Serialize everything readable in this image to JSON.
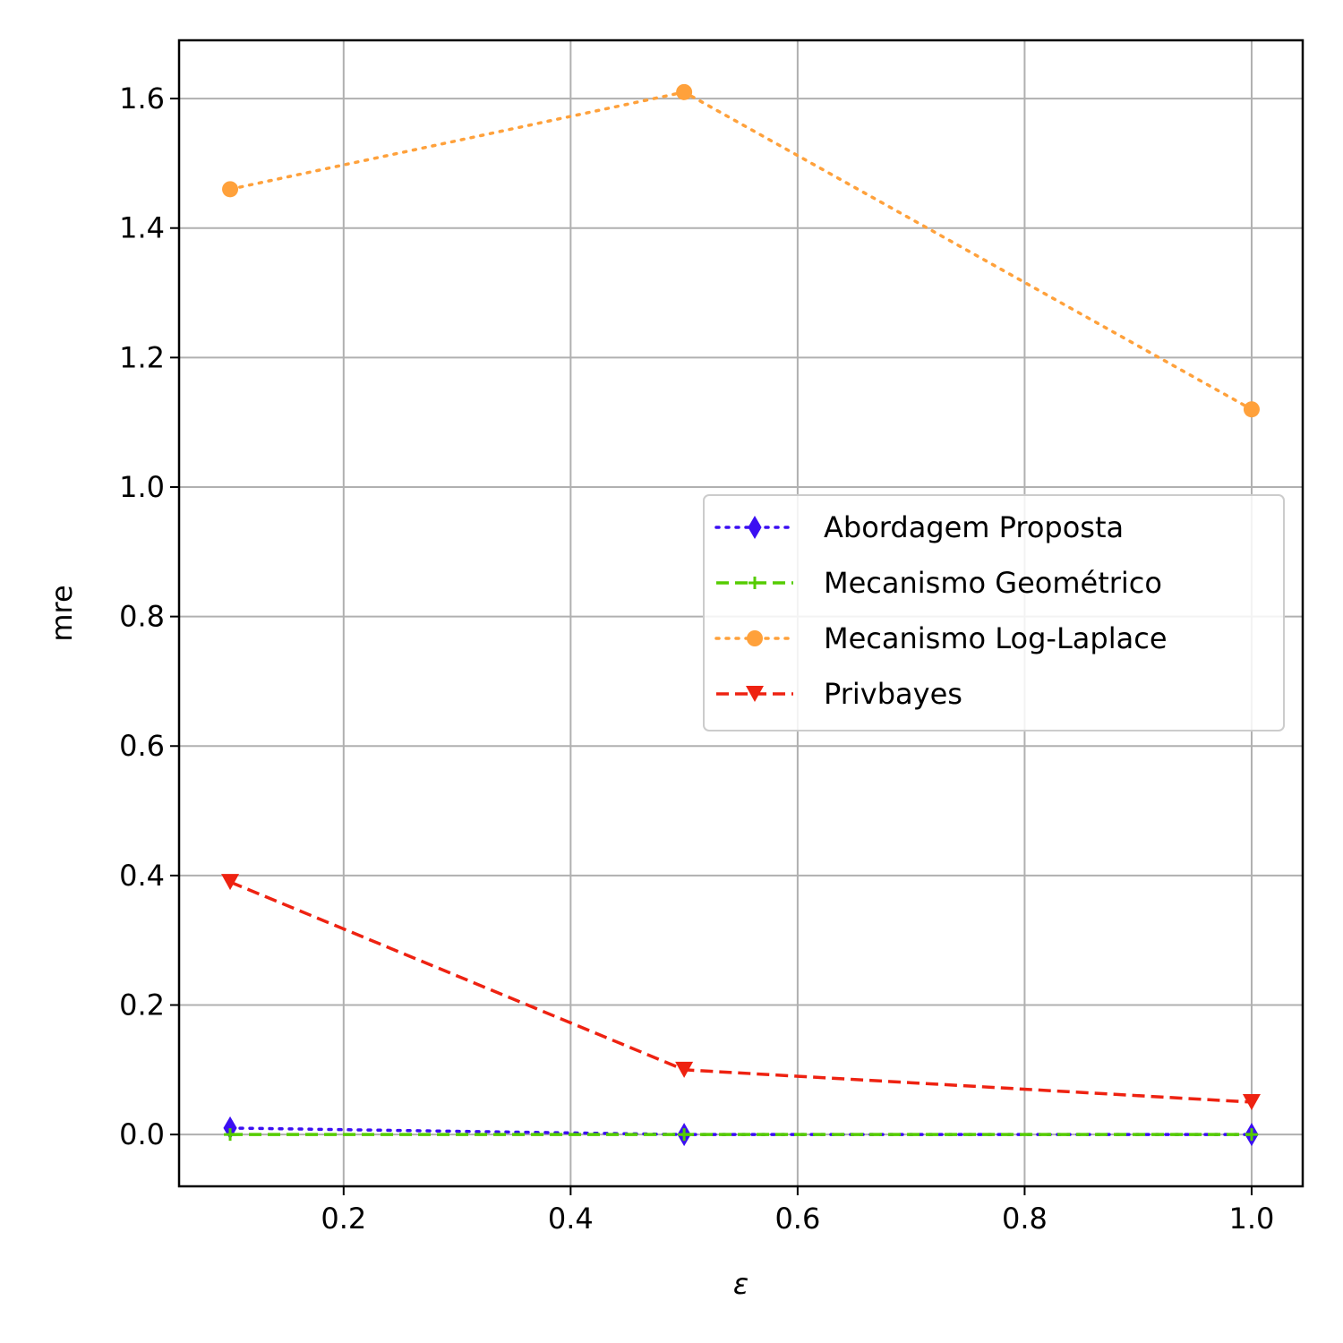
{
  "chart_data": {
    "type": "line",
    "title": "",
    "xlabel": "ε",
    "ylabel": "mre",
    "xlim": [
      0.055,
      1.045
    ],
    "ylim": [
      -0.08,
      1.69
    ],
    "xticks": [
      0.2,
      0.4,
      0.6,
      0.8,
      1.0
    ],
    "xtick_labels": [
      "0.2",
      "0.4",
      "0.6",
      "0.8",
      "1.0"
    ],
    "yticks": [
      0.0,
      0.2,
      0.4,
      0.6,
      0.8,
      1.0,
      1.2,
      1.4,
      1.6
    ],
    "ytick_labels": [
      "0.0",
      "0.2",
      "0.4",
      "0.6",
      "0.8",
      "1.0",
      "1.2",
      "1.4",
      "1.6"
    ],
    "grid": true,
    "legend_position": "center-right",
    "x": [
      0.1,
      0.5,
      1.0
    ],
    "series": [
      {
        "name": "Abordagem Proposta",
        "values": [
          0.01,
          0.0,
          0.0
        ],
        "color": "#3b0ff2",
        "linestyle": "dotted",
        "marker": "diamond"
      },
      {
        "name": "Mecanismo Geométrico",
        "values": [
          0.0,
          0.0,
          0.0
        ],
        "color": "#55cc00",
        "linestyle": "dashed",
        "marker": "plus"
      },
      {
        "name": "Mecanismo Log-Laplace",
        "values": [
          1.46,
          1.61,
          1.12
        ],
        "color": "#ffa13b",
        "linestyle": "dotted",
        "marker": "circle"
      },
      {
        "name": "Privbayes",
        "values": [
          0.39,
          0.1,
          0.05
        ],
        "color": "#ee2211",
        "linestyle": "dashed",
        "marker": "triangle-down"
      }
    ]
  }
}
